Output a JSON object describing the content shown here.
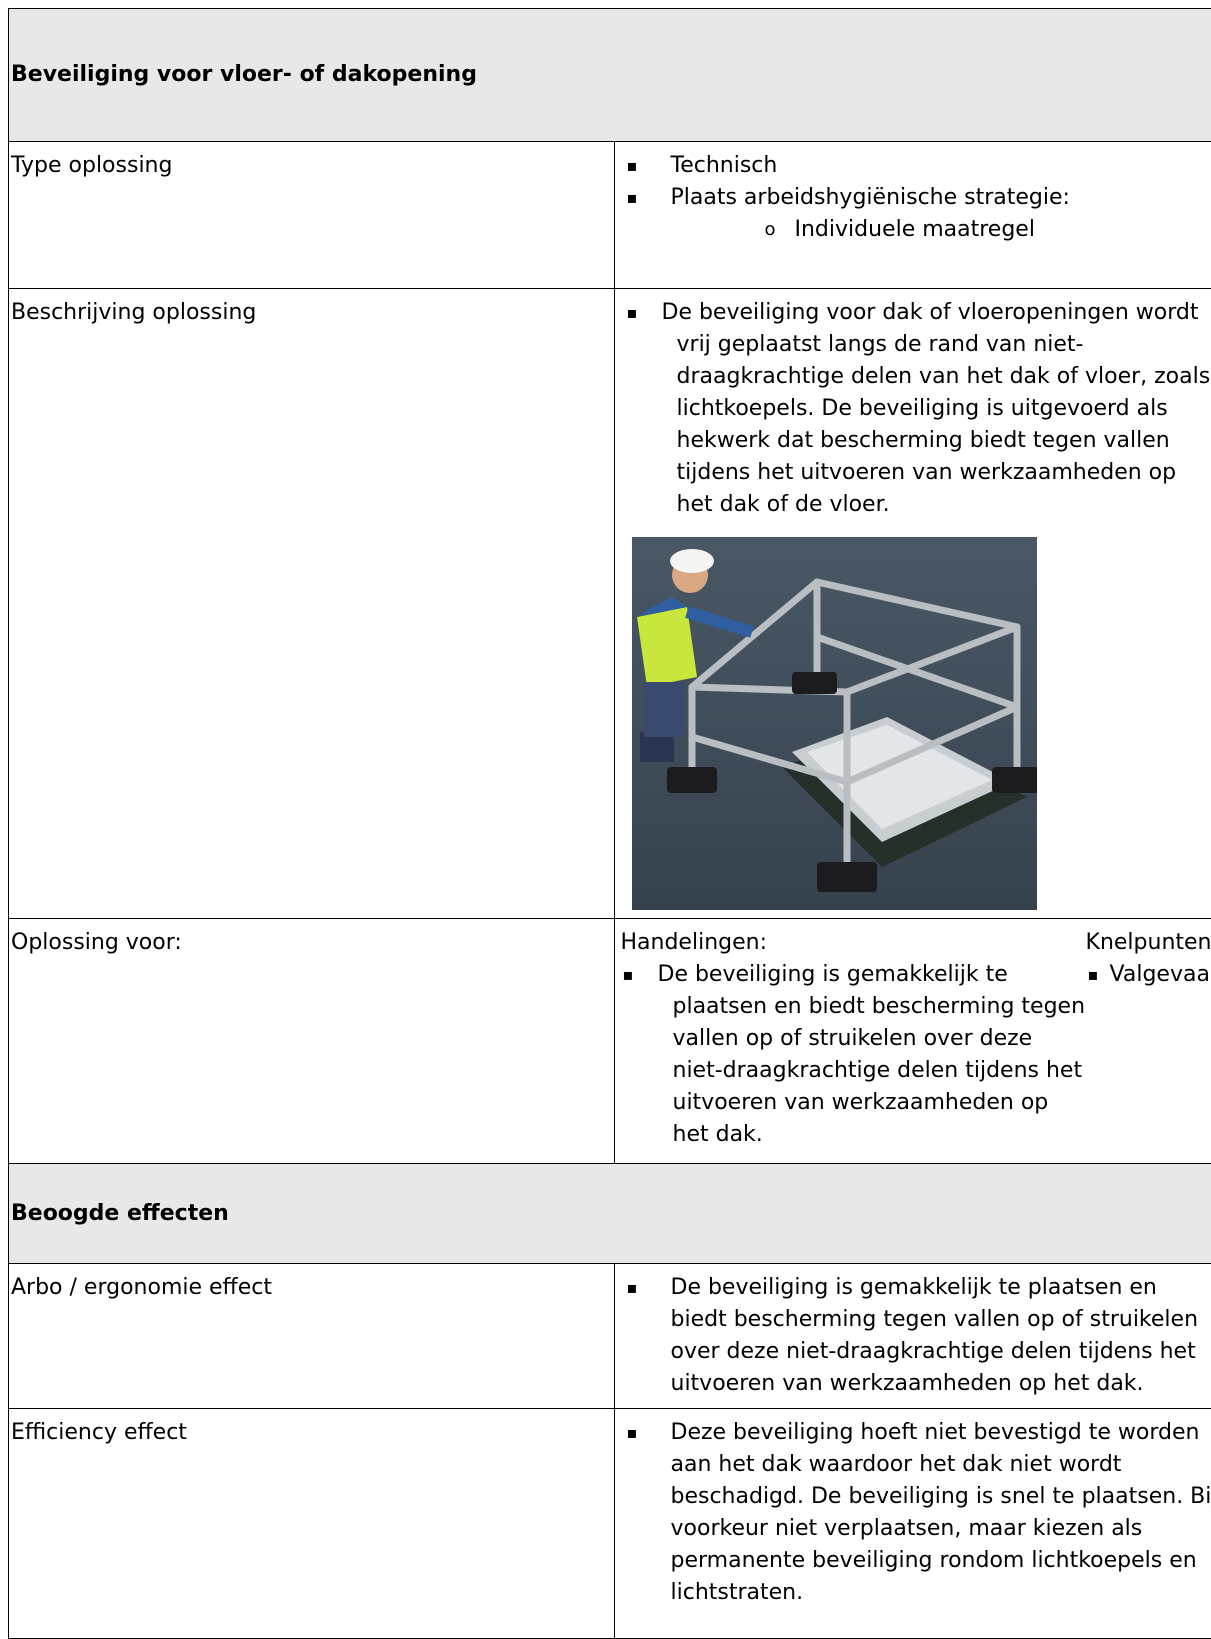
{
  "title": "Beveiliging voor vloer- of dakopening",
  "rows": [
    {
      "label": "Type oplossing",
      "bullets": [
        "Technisch",
        "Plaats arbeidshygiënische strategie:"
      ],
      "sub_bullets": [
        "Individuele maatregel"
      ]
    },
    {
      "label": "Beschrijving oplossing",
      "bullets": [
        "De beveiliging voor dak of vloeropeningen wordt vrij geplaatst langs de rand van niet-draagkrachtige delen van het dak of vloer, zoals lichtkoepels. De beveiliging is uitgevoerd als hekwerk dat bescherming biedt tegen vallen tijdens het uitvoeren van werkzaamheden op het dak of de vloer."
      ]
    },
    {
      "label": "Oplossing voor:",
      "left_heading": "Handelingen:",
      "left_bullets": [
        "De beveiliging is gemakkelijk te plaatsen en biedt bescherming tegen vallen op of struikelen over deze niet-draagkrachtige delen tijdens het uitvoeren van werkzaamheden op het dak."
      ],
      "right_heading": "Knelpunten:",
      "right_bullets": [
        "Valgevaar"
      ]
    }
  ],
  "effects_title": "Beoogde effecten",
  "effects": [
    {
      "label": "Arbo / ergonomie effect",
      "bullets": [
        "De beveiliging is gemakkelijk te plaatsen en biedt bescherming tegen vallen op of struikelen over deze niet-draagkrachtige delen tijdens het uitvoeren van werkzaamheden op het dak."
      ]
    },
    {
      "label": "Efficiency effect",
      "bullets": [
        "Deze beveiliging hoeft niet bevestigd te worden aan het dak waardoor het dak niet wordt beschadigd. De beveiliging is snel te plaatsen. Bij voorkeur niet verplaatsen, maar kiezen als permanente beveiliging rondom lichtkoepels en lichtstraten."
      ]
    }
  ]
}
